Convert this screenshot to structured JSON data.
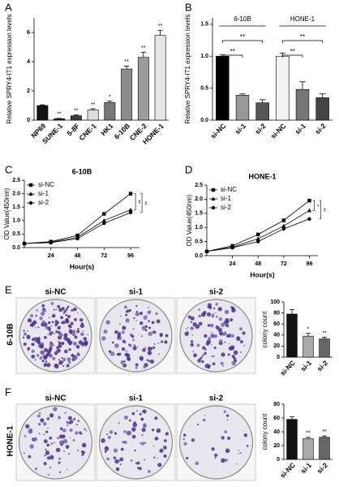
{
  "chart_data": [
    {
      "type": "bar",
      "panel": "A",
      "ylabel": "Relative SPRY4-IT1 expression levels",
      "categories": [
        "NP69",
        "SUNE-1",
        "5-8F",
        "CNE-1",
        "HK1",
        "6-10B",
        "CNE-2",
        "HONE-1"
      ],
      "values": [
        1.0,
        0.1,
        0.3,
        0.7,
        1.2,
        3.5,
        4.3,
        5.8
      ],
      "errors": [
        0.05,
        0.02,
        0.05,
        0.08,
        0.1,
        0.2,
        0.35,
        0.35
      ],
      "value_annotations": [
        null,
        "**",
        "**",
        "**",
        "*",
        "**",
        "**",
        "**"
      ],
      "colors": [
        "#111111",
        "#222222",
        "#3c3c3c",
        "#dcdcdc",
        "#777777",
        "#8c8c8c",
        "#9c9c9c",
        "#e6e6e6"
      ],
      "ylim": [
        0,
        7
      ],
      "yticks": [
        0,
        2,
        4,
        6
      ]
    },
    {
      "type": "bar",
      "panel": "B",
      "ylabel": "Relative SPRY4-IT1 expression levels",
      "categories": [
        "si-NC",
        "si-1",
        "si-2",
        "si-NC",
        "si-1",
        "si-2"
      ],
      "values": [
        1.0,
        0.39,
        0.27,
        1.0,
        0.48,
        0.35
      ],
      "errors": [
        0.02,
        0.02,
        0.05,
        0.05,
        0.12,
        0.06
      ],
      "colors": [
        "#000000",
        "#999999",
        "#555555",
        "#f2f2f2",
        "#777777",
        "#444444"
      ],
      "groups": [
        {
          "name": "6-10B",
          "comparisons": [
            "**",
            "**"
          ]
        },
        {
          "name": "HONE-1",
          "comparisons": [
            "**",
            "**"
          ]
        }
      ],
      "ylim": [
        0,
        1.6
      ],
      "yticks": [
        {
          "value": 0,
          "label": "0.0"
        },
        {
          "value": 0.5,
          "label": "0.5"
        },
        {
          "value": 1,
          "label": "1.0"
        },
        {
          "value": 1.5,
          "label": "1.5"
        }
      ]
    },
    {
      "type": "line",
      "panel": "C",
      "title": "6-10B",
      "ylabel": "OD Value(450nm)",
      "xlabel": "Hour(s)",
      "x": [
        0,
        24,
        48,
        72,
        96
      ],
      "series": [
        {
          "name": "si-NC",
          "color": "#000000",
          "marker": "square",
          "values": [
            0.15,
            0.22,
            0.45,
            1.25,
            2.0
          ]
        },
        {
          "name": "si-1",
          "color": "#000000",
          "marker": "triangle",
          "values": [
            0.15,
            0.2,
            0.38,
            1.0,
            1.4
          ]
        },
        {
          "name": "si-2",
          "color": "#000000",
          "marker": "circle",
          "values": [
            0.15,
            0.18,
            0.33,
            0.9,
            1.3
          ]
        }
      ],
      "comparisons": [
        "**",
        "**"
      ],
      "xlim": [
        0,
        104
      ],
      "xticks": [
        24,
        48,
        72,
        96
      ],
      "ylim": [
        0,
        2.5
      ],
      "yticks": [
        {
          "value": 0,
          "label": "0.0"
        },
        {
          "value": 0.5,
          "label": "0.5"
        },
        {
          "value": 1,
          "label": "1.0"
        },
        {
          "value": 1.5,
          "label": "1.5"
        },
        {
          "value": 2,
          "label": "2.0"
        },
        {
          "value": 2.5,
          "label": "2.5"
        }
      ],
      "legend": "upper left"
    },
    {
      "type": "line",
      "panel": "D",
      "title": "HONE-1",
      "ylabel": "OD Value(450nm)",
      "xlabel": "Hour(s)",
      "x": [
        0,
        24,
        48,
        72,
        96
      ],
      "series": [
        {
          "name": "si-NC",
          "color": "#000000",
          "marker": "square",
          "values": [
            0.15,
            0.35,
            0.75,
            1.25,
            1.95
          ]
        },
        {
          "name": "si-1",
          "color": "#000000",
          "marker": "triangle",
          "values": [
            0.15,
            0.3,
            0.6,
            1.05,
            1.6
          ]
        },
        {
          "name": "si-2",
          "color": "#000000",
          "marker": "circle",
          "values": [
            0.15,
            0.28,
            0.5,
            0.95,
            1.3
          ]
        }
      ],
      "comparisons": [
        "*",
        "**"
      ],
      "xlim": [
        0,
        104
      ],
      "xticks": [
        24,
        48,
        72,
        96
      ],
      "ylim": [
        0,
        2.5
      ],
      "yticks": [
        {
          "value": 0,
          "label": "0.0"
        },
        {
          "value": 0.5,
          "label": "0.5"
        },
        {
          "value": 1,
          "label": "1.0"
        },
        {
          "value": 1.5,
          "label": "1.5"
        },
        {
          "value": 2,
          "label": "2.0"
        },
        {
          "value": 2.5,
          "label": "2.5"
        }
      ],
      "legend": "upper left"
    },
    {
      "type": "bar",
      "panel": "E",
      "row_label": "6-10B",
      "image_labels": [
        "si-NC",
        "si-1",
        "si-2"
      ],
      "ylabel": "colony count",
      "categories": [
        "si-NC",
        "si-1",
        "si-2"
      ],
      "values": [
        78,
        38,
        33
      ],
      "errors": [
        8,
        5,
        3
      ],
      "value_annotations": [
        null,
        "*",
        "**"
      ],
      "colors": [
        "#111111",
        "#aaaaaa",
        "#666666"
      ],
      "ylim": [
        0,
        100
      ],
      "yticks": [
        0,
        20,
        40,
        60,
        80,
        100
      ]
    },
    {
      "type": "bar",
      "panel": "F",
      "row_label": "HONE-1",
      "image_labels": [
        "si-NC",
        "si-1",
        "si-2"
      ],
      "ylabel": "colony count",
      "categories": [
        "si-NC",
        "si-1",
        "si-2"
      ],
      "values": [
        58,
        30,
        32
      ],
      "errors": [
        4,
        2,
        2
      ],
      "value_annotations": [
        null,
        "**",
        "**"
      ],
      "colors": [
        "#111111",
        "#aaaaaa",
        "#666666"
      ],
      "ylim": [
        0,
        80
      ],
      "yticks": [
        0,
        20,
        40,
        60,
        80
      ]
    }
  ]
}
